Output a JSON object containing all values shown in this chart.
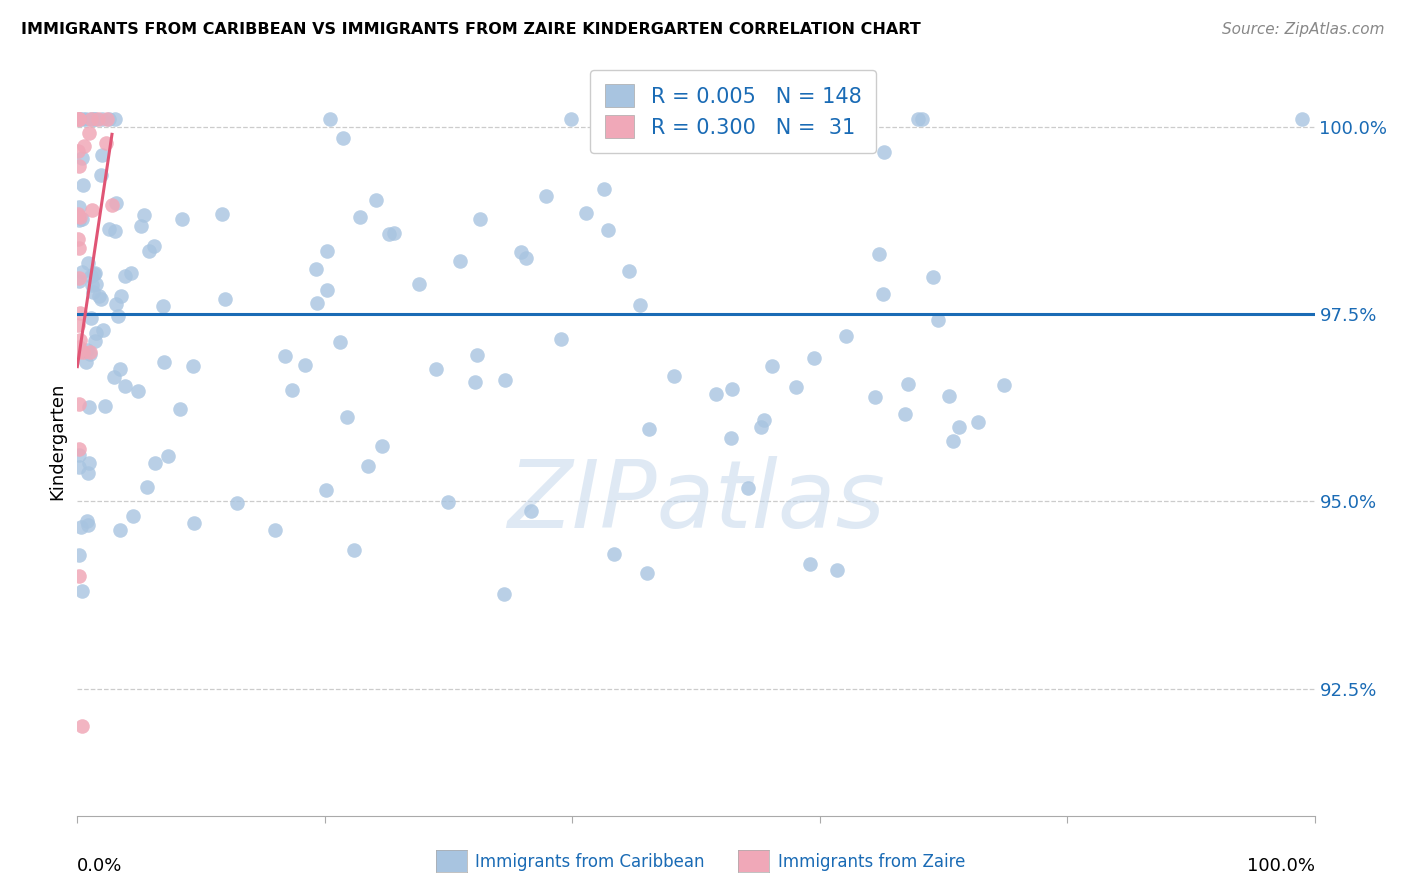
{
  "title": "IMMIGRANTS FROM CARIBBEAN VS IMMIGRANTS FROM ZAIRE KINDERGARTEN CORRELATION CHART",
  "source": "Source: ZipAtlas.com",
  "ylabel": "Kindergarten",
  "legend_label_blue": "Immigrants from Caribbean",
  "legend_label_pink": "Immigrants from Zaire",
  "R_blue": 0.005,
  "N_blue": 148,
  "R_pink": 0.3,
  "N_pink": 31,
  "blue_color": "#a8c4e0",
  "pink_color": "#f0a8b8",
  "trend_blue": "#1a6bb5",
  "trend_pink": "#e05575",
  "axis_color": "#1a6bb5",
  "watermark": "ZIPatlas",
  "xlim": [
    0.0,
    1.0
  ],
  "ylim": [
    0.908,
    1.008
  ],
  "yticks": [
    0.925,
    0.95,
    0.975,
    1.0
  ],
  "ytick_labels": [
    "92.5%",
    "95.0%",
    "97.5%",
    "100.0%"
  ],
  "blue_trend_y": [
    0.975,
    0.975
  ],
  "pink_trend_x": [
    0.0,
    0.028
  ],
  "pink_trend_y": [
    0.968,
    0.999
  ]
}
